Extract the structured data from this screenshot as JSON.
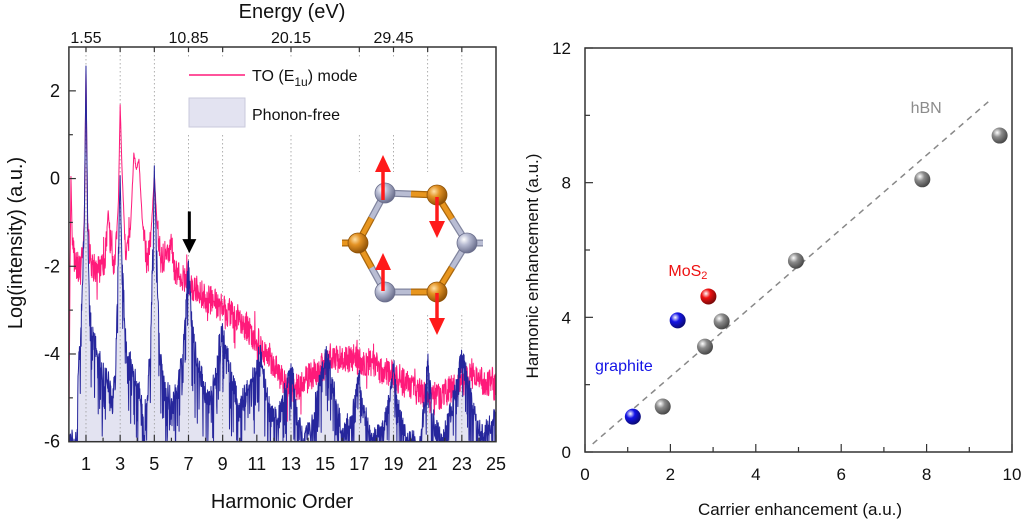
{
  "chart_data": [
    {
      "type": "line",
      "title": "",
      "xlabel": "Harmonic Order",
      "ylabel": "Log(intensity) (a.u.)",
      "xlim": [
        0,
        25
      ],
      "ylim": [
        -6,
        3
      ],
      "xticks": [
        1,
        3,
        5,
        7,
        9,
        11,
        13,
        15,
        17,
        19,
        21,
        23,
        25
      ],
      "xticks_minor": [
        2,
        4,
        6,
        8,
        10,
        12,
        14,
        16,
        18,
        20,
        22,
        24
      ],
      "yticks": [
        2,
        0,
        -2,
        -4,
        -6
      ],
      "yticks_minor": [
        1,
        -1,
        -3,
        -5
      ],
      "grid": "dotted vertical lines at selected harmonics",
      "vlines": [
        1,
        3,
        5,
        7,
        9,
        13,
        17,
        19,
        21,
        23
      ],
      "top_axis": {
        "label": "Energy (eV)",
        "ticks": [
          {
            "at": 1,
            "label": "1.55"
          },
          {
            "at": 7,
            "label": "10.85"
          },
          {
            "at": 13,
            "label": "20.15"
          },
          {
            "at": 19,
            "label": "29.45"
          }
        ]
      },
      "legend": {
        "placement": "top-center",
        "items": [
          {
            "name_prefix": "TO (E",
            "name_sub": "1u",
            "name_suffix": ") mode",
            "style": "line"
          },
          {
            "name": "Phonon-free",
            "style": "filled-area"
          }
        ]
      },
      "series": [
        {
          "name": "TO (E1u) mode",
          "color": "#ff1a7a",
          "noise": 0.33,
          "points": [
            [
              0.0,
              -6
            ],
            [
              0.05,
              -3
            ],
            [
              0.12,
              0.05
            ],
            [
              0.2,
              -1.5
            ],
            [
              0.35,
              -1.9
            ],
            [
              0.7,
              -2.1
            ],
            [
              0.9,
              -1.0
            ],
            [
              1.0,
              2.5
            ],
            [
              1.1,
              -1.2
            ],
            [
              1.3,
              -2.0
            ],
            [
              1.7,
              -2.1
            ],
            [
              2.1,
              -1.9
            ],
            [
              2.3,
              -0.75
            ],
            [
              2.45,
              -1.6
            ],
            [
              2.7,
              -2.0
            ],
            [
              2.9,
              -0.5
            ],
            [
              3.0,
              1.7
            ],
            [
              3.1,
              0.3
            ],
            [
              3.3,
              -1.6
            ],
            [
              3.6,
              -1.2
            ],
            [
              3.8,
              0.56
            ],
            [
              3.95,
              0.2
            ],
            [
              4.1,
              0.43
            ],
            [
              4.3,
              -1.0
            ],
            [
              4.6,
              -2.0
            ],
            [
              4.85,
              -1.0
            ],
            [
              5.0,
              0.1
            ],
            [
              5.15,
              -1.0
            ],
            [
              5.4,
              -1.9
            ],
            [
              5.7,
              -1.7
            ],
            [
              6.0,
              -1.5
            ],
            [
              6.2,
              -2.1
            ],
            [
              6.5,
              -2.25
            ],
            [
              7.0,
              -2.4
            ],
            [
              8.0,
              -2.7
            ],
            [
              9.0,
              -2.95
            ],
            [
              10.0,
              -3.2
            ],
            [
              11.0,
              -3.7
            ],
            [
              11.8,
              -4.1
            ],
            [
              12.8,
              -4.8
            ],
            [
              13.5,
              -4.75
            ],
            [
              14.5,
              -4.37
            ],
            [
              15.5,
              -4.14
            ],
            [
              16.5,
              -4.1
            ],
            [
              17.5,
              -4.18
            ],
            [
              18.4,
              -4.37
            ],
            [
              19.3,
              -4.6
            ],
            [
              20.3,
              -4.82
            ],
            [
              21.3,
              -5.05
            ],
            [
              21.9,
              -4.9
            ],
            [
              22.7,
              -4.7
            ],
            [
              23.6,
              -4.52
            ],
            [
              24.2,
              -4.6
            ],
            [
              25.0,
              -4.75
            ]
          ]
        },
        {
          "name": "Phonon-free",
          "color": "#26269c",
          "fill": "#e3e3f1",
          "noise": 0.28,
          "points": [
            [
              0.0,
              -6
            ],
            [
              0.45,
              -6
            ],
            [
              0.55,
              -4.4
            ],
            [
              0.75,
              -3.0
            ],
            [
              0.9,
              -1.0
            ],
            [
              1.0,
              2.55
            ],
            [
              1.1,
              -1.0
            ],
            [
              1.2,
              -3.05
            ],
            [
              1.6,
              -3.85
            ],
            [
              2.0,
              -4.45
            ],
            [
              2.35,
              -4.7
            ],
            [
              2.55,
              -5.2
            ],
            [
              2.75,
              -4.2
            ],
            [
              2.9,
              -1.5
            ],
            [
              3.0,
              0.05
            ],
            [
              3.1,
              -1.8
            ],
            [
              3.35,
              -3.95
            ],
            [
              3.75,
              -4.35
            ],
            [
              4.1,
              -4.85
            ],
            [
              4.35,
              -5.45
            ],
            [
              4.6,
              -4.95
            ],
            [
              4.8,
              -3.4
            ],
            [
              4.95,
              -1.0
            ],
            [
              5.0,
              0.3
            ],
            [
              5.1,
              -1.2
            ],
            [
              5.3,
              -4.0
            ],
            [
              5.6,
              -4.75
            ],
            [
              6.0,
              -5.05
            ],
            [
              6.3,
              -4.85
            ],
            [
              6.7,
              -3.8
            ],
            [
              6.9,
              -2.6
            ],
            [
              7.0,
              -1.85
            ],
            [
              7.1,
              -2.7
            ],
            [
              7.3,
              -3.7
            ],
            [
              7.7,
              -4.45
            ],
            [
              8.1,
              -5.05
            ],
            [
              8.5,
              -4.7
            ],
            [
              8.8,
              -3.8
            ],
            [
              9.0,
              -3.4
            ],
            [
              9.2,
              -3.8
            ],
            [
              9.6,
              -4.7
            ],
            [
              10.0,
              -5.2
            ],
            [
              10.5,
              -4.8
            ],
            [
              11.2,
              -4.0
            ],
            [
              11.6,
              -5.0
            ],
            [
              12.2,
              -5.6
            ],
            [
              12.7,
              -4.8
            ],
            [
              13.0,
              -4.2
            ],
            [
              13.3,
              -5.2
            ],
            [
              13.7,
              -6.0
            ],
            [
              14.3,
              -5.5
            ],
            [
              14.6,
              -4.6
            ],
            [
              15.1,
              -4.0
            ],
            [
              15.5,
              -4.8
            ],
            [
              16.0,
              -5.8
            ],
            [
              16.6,
              -5.4
            ],
            [
              17.0,
              -4.4
            ],
            [
              17.3,
              -5.3
            ],
            [
              17.8,
              -6.0
            ],
            [
              18.4,
              -5.7
            ],
            [
              18.8,
              -5.0
            ],
            [
              19.0,
              -4.25
            ],
            [
              19.3,
              -5.3
            ],
            [
              19.8,
              -6.0
            ],
            [
              20.6,
              -6.0
            ],
            [
              21.0,
              -4.2
            ],
            [
              21.3,
              -5.5
            ],
            [
              21.8,
              -6.0
            ],
            [
              22.3,
              -5.4
            ],
            [
              22.7,
              -4.6
            ],
            [
              23.0,
              -4.1
            ],
            [
              23.4,
              -4.7
            ],
            [
              23.8,
              -5.5
            ],
            [
              24.3,
              -5.8
            ],
            [
              25.0,
              -5.4
            ]
          ]
        }
      ],
      "annotations": [
        {
          "type": "arrow",
          "x": 7.05,
          "y_start": -0.75,
          "y_end": -1.7,
          "color": "#000000"
        }
      ],
      "inset": {
        "type": "lattice-diagram",
        "arrow_color": "#ff1a1a"
      }
    },
    {
      "type": "scatter",
      "title": "",
      "xlabel": "Carrier enhancement (a.u.)",
      "ylabel": "Harmonic enhancement (a.u.)",
      "xlim": [
        0,
        10
      ],
      "ylim": [
        0,
        12
      ],
      "xticks": [
        0,
        2,
        4,
        6,
        8,
        10
      ],
      "xticks_minor": [
        1,
        3,
        5,
        7,
        9
      ],
      "yticks": [
        0,
        4,
        8,
        12
      ],
      "yticks_minor": [
        2,
        6,
        10
      ],
      "grid": false,
      "series": [
        {
          "name": "hBN",
          "label": "hBN",
          "label_sub": "",
          "label_at": [
            7.99,
            10.22
          ],
          "color": "#8c8c8c",
          "points": [
            [
              1.82,
              1.35
            ],
            [
              2.81,
              3.13
            ],
            [
              3.2,
              3.88
            ],
            [
              4.94,
              5.68
            ],
            [
              7.9,
              8.1
            ],
            [
              9.71,
              9.4
            ]
          ]
        },
        {
          "name": "graphite",
          "label": "graphite",
          "label_sub": "",
          "label_at": [
            0.91,
            2.55
          ],
          "color": "#1414e6",
          "points": [
            [
              1.12,
              1.05
            ],
            [
              2.17,
              3.91
            ]
          ]
        },
        {
          "name": "MoS2",
          "label": "MoS",
          "label_sub": "2",
          "label_at": [
            2.41,
            5.38
          ],
          "color": "#ee1111",
          "points": [
            [
              2.89,
              4.62
            ]
          ]
        }
      ],
      "fit_line": {
        "style": "dashed",
        "color": "#888888",
        "from": [
          0.18,
          0.24
        ],
        "to": [
          9.46,
          10.42
        ]
      }
    }
  ]
}
